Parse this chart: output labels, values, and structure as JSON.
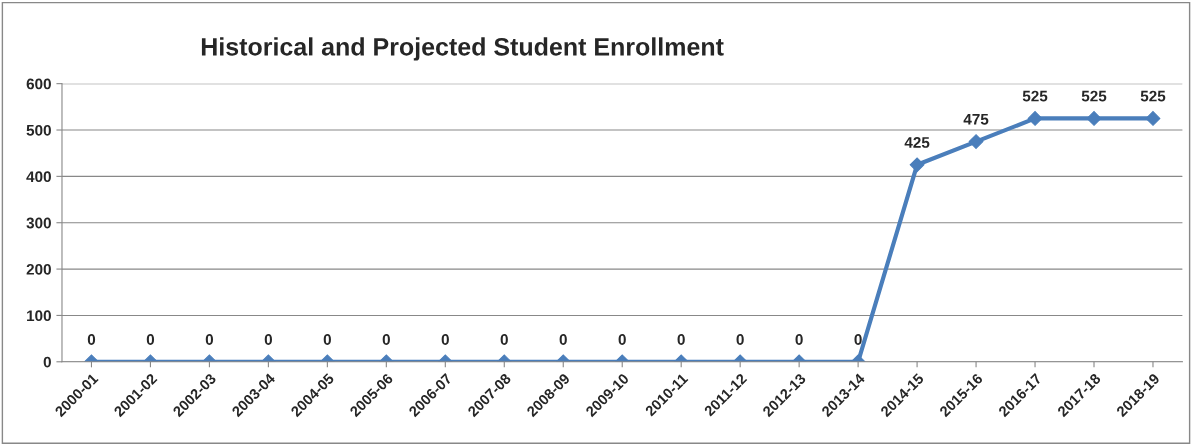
{
  "chart_data": {
    "type": "line",
    "title": "Historical and Projected Student Enrollment",
    "categories": [
      "2000-01",
      "2001-02",
      "2002-03",
      "2003-04",
      "2004-05",
      "2005-06",
      "2006-07",
      "2007-08",
      "2008-09",
      "2009-10",
      "2010-11",
      "2011-12",
      "2012-13",
      "2013-14",
      "2014-15",
      "2015-16",
      "2016-17",
      "2017-18",
      "2018-19"
    ],
    "series": [
      {
        "color": "#4a7ebb",
        "values": [
          0,
          0,
          0,
          0,
          0,
          0,
          0,
          0,
          0,
          0,
          0,
          0,
          0,
          0,
          425,
          475,
          525,
          525,
          525
        ]
      }
    ],
    "ylim": [
      0,
      600
    ],
    "yticks": [
      0,
      100,
      200,
      300,
      400,
      500,
      600
    ],
    "grid": "y",
    "marker": "diamond",
    "line_style": "solid",
    "data_labels": true,
    "legend": false
  }
}
